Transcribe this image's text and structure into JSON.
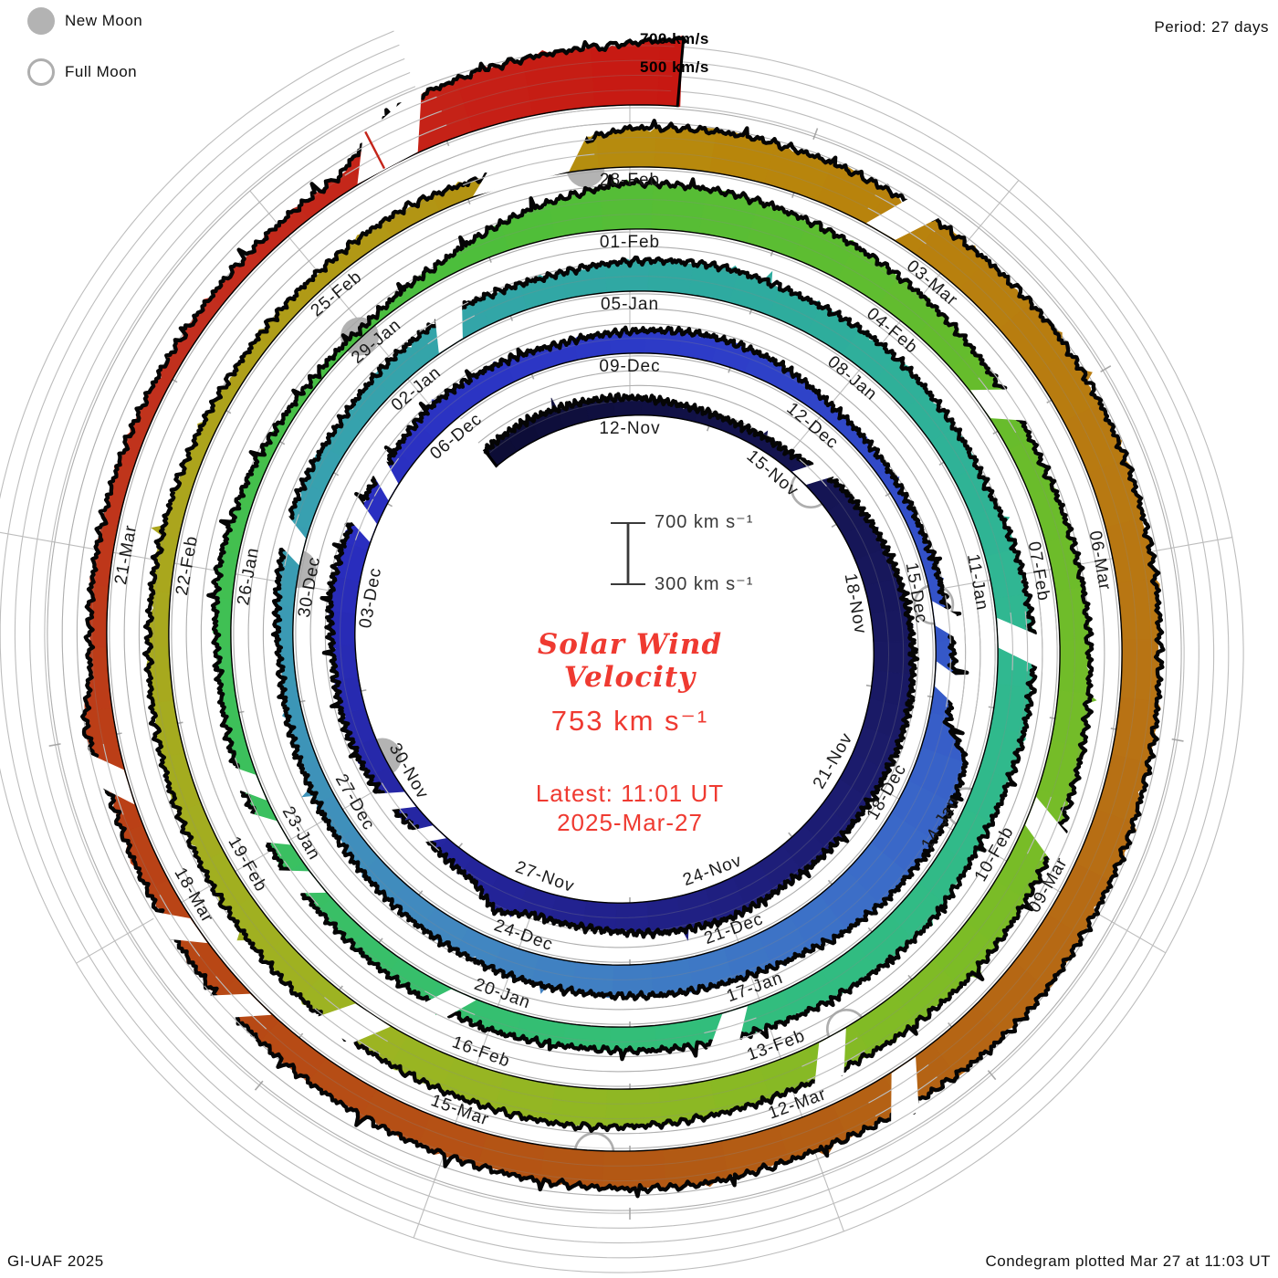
{
  "header": {
    "period_label": "Period: 27 days"
  },
  "legend": {
    "new_moon_label": "New Moon",
    "full_moon_label": "Full Moon"
  },
  "footer": {
    "left": "GI-UAF 2025",
    "right": "Condegram plotted Mar 27 at 11:03 UT"
  },
  "center": {
    "title_line1": "Solar Wind",
    "title_line2": "Velocity",
    "current_value": "753 km s⁻¹",
    "latest_line": "Latest: 11:01 UT",
    "date_line": "2025-Mar-27",
    "scalebar_top": "700 km s⁻¹",
    "scalebar_bottom": "300 km s⁻¹"
  },
  "outer_scale": {
    "top": "700 km/s",
    "bottom": "500 km/s"
  },
  "chart_data": {
    "type": "spiral_polar_time_series_condegram",
    "title": "Solar Wind Velocity",
    "period_days": 27,
    "days_per_tick_label": 3,
    "start_label": "12-Nov",
    "end_datetime": "2025-Mar-27 11:01 UT",
    "latest_velocity_kms": 753,
    "radial_scale": {
      "baseline_kms": 300,
      "gridlines_kms": [
        400,
        500,
        600,
        700
      ]
    },
    "date_labels": [
      {
        "t": 0,
        "text": "12-Nov"
      },
      {
        "t": 3,
        "text": "15-Nov"
      },
      {
        "t": 6,
        "text": "18-Nov"
      },
      {
        "t": 9,
        "text": "21-Nov"
      },
      {
        "t": 12,
        "text": "24-Nov"
      },
      {
        "t": 15,
        "text": "27-Nov"
      },
      {
        "t": 18,
        "text": "30-Nov"
      },
      {
        "t": 21,
        "text": "03-Dec"
      },
      {
        "t": 24,
        "text": "06-Dec"
      },
      {
        "t": 27,
        "text": "09-Dec"
      },
      {
        "t": 30,
        "text": "12-Dec"
      },
      {
        "t": 33,
        "text": "15-Dec"
      },
      {
        "t": 36,
        "text": "18-Dec"
      },
      {
        "t": 39,
        "text": "21-Dec"
      },
      {
        "t": 42,
        "text": "24-Dec"
      },
      {
        "t": 45,
        "text": "27-Dec"
      },
      {
        "t": 48,
        "text": "30-Dec"
      },
      {
        "t": 51,
        "text": "02-Jan"
      },
      {
        "t": 54,
        "text": "05-Jan"
      },
      {
        "t": 57,
        "text": "08-Jan"
      },
      {
        "t": 60,
        "text": "11-Jan"
      },
      {
        "t": 63,
        "text": "14-Jan"
      },
      {
        "t": 66,
        "text": "17-Jan"
      },
      {
        "t": 69,
        "text": "20-Jan"
      },
      {
        "t": 72,
        "text": "23-Jan"
      },
      {
        "t": 75,
        "text": "26-Jan"
      },
      {
        "t": 78,
        "text": "29-Jan"
      },
      {
        "t": 81,
        "text": "01-Feb"
      },
      {
        "t": 84,
        "text": "04-Feb"
      },
      {
        "t": 87,
        "text": "07-Feb"
      },
      {
        "t": 90,
        "text": "10-Feb"
      },
      {
        "t": 93,
        "text": "13-Feb"
      },
      {
        "t": 96,
        "text": "16-Feb"
      },
      {
        "t": 99,
        "text": "19-Feb"
      },
      {
        "t": 102,
        "text": "22-Feb"
      },
      {
        "t": 105,
        "text": "25-Feb"
      },
      {
        "t": 108,
        "text": "28-Feb"
      },
      {
        "t": 111,
        "text": "03-Mar"
      },
      {
        "t": 114,
        "text": "06-Mar"
      },
      {
        "t": 117,
        "text": "09-Mar"
      },
      {
        "t": 120,
        "text": "12-Mar"
      },
      {
        "t": 123,
        "text": "15-Mar"
      },
      {
        "t": 126,
        "text": "18-Mar"
      },
      {
        "t": 129,
        "text": "21-Mar"
      }
    ],
    "velocity_series_t_v_kms": [
      [
        -2.8,
        430
      ],
      [
        -2,
        445
      ],
      [
        -1,
        435
      ],
      [
        0,
        420
      ],
      [
        1,
        390
      ],
      [
        2,
        378
      ],
      [
        3,
        392
      ],
      [
        4,
        470
      ],
      [
        5,
        515
      ],
      [
        6,
        545
      ],
      [
        7,
        565
      ],
      [
        8,
        572
      ],
      [
        9,
        558
      ],
      [
        10,
        540
      ],
      [
        11,
        525
      ],
      [
        12,
        545
      ],
      [
        13,
        520
      ],
      [
        14,
        482
      ],
      [
        15,
        470
      ],
      [
        15.5,
        540
      ],
      [
        16,
        430
      ],
      [
        17,
        400
      ],
      [
        18,
        450
      ],
      [
        19,
        468
      ],
      [
        20,
        452
      ],
      [
        21,
        482
      ],
      [
        22,
        462
      ],
      [
        23,
        442
      ],
      [
        24,
        478
      ],
      [
        25,
        460
      ],
      [
        26,
        432
      ],
      [
        27,
        448
      ],
      [
        28,
        470
      ],
      [
        29,
        452
      ],
      [
        30,
        398
      ],
      [
        31,
        382
      ],
      [
        32,
        372
      ],
      [
        33,
        385
      ],
      [
        34,
        420
      ],
      [
        34.8,
        430
      ],
      [
        35.2,
        615
      ],
      [
        36,
        648
      ],
      [
        37,
        632
      ],
      [
        37.8,
        598
      ],
      [
        38.3,
        560
      ],
      [
        39,
        535
      ],
      [
        40,
        520
      ],
      [
        41,
        502
      ],
      [
        42,
        492
      ],
      [
        43,
        472
      ],
      [
        44,
        452
      ],
      [
        45,
        432
      ],
      [
        46,
        412
      ],
      [
        47,
        395
      ],
      [
        48,
        425
      ],
      [
        49,
        452
      ],
      [
        50,
        442
      ],
      [
        51,
        472
      ],
      [
        52,
        492
      ],
      [
        53,
        472
      ],
      [
        54,
        502
      ],
      [
        55,
        522
      ],
      [
        56,
        502
      ],
      [
        57,
        512
      ],
      [
        58,
        492
      ],
      [
        59,
        475
      ],
      [
        60,
        522
      ],
      [
        61,
        542
      ],
      [
        62,
        522
      ],
      [
        63,
        502
      ],
      [
        64,
        532
      ],
      [
        65,
        512
      ],
      [
        66,
        490
      ],
      [
        67,
        470
      ],
      [
        68,
        452
      ],
      [
        69,
        462
      ],
      [
        70,
        442
      ],
      [
        71,
        422
      ],
      [
        72,
        432
      ],
      [
        73,
        412
      ],
      [
        74,
        392
      ],
      [
        75,
        420
      ],
      [
        76,
        390
      ],
      [
        77,
        352
      ],
      [
        78,
        342
      ],
      [
        79,
        400
      ],
      [
        80,
        520
      ],
      [
        81,
        612
      ],
      [
        82,
        600
      ],
      [
        83,
        562
      ],
      [
        84,
        522
      ],
      [
        85,
        482
      ],
      [
        86,
        462
      ],
      [
        87,
        482
      ],
      [
        88,
        502
      ],
      [
        89,
        522
      ],
      [
        90,
        542
      ],
      [
        91,
        562
      ],
      [
        92,
        542
      ],
      [
        93,
        522
      ],
      [
        94,
        542
      ],
      [
        95,
        562
      ],
      [
        96,
        542
      ],
      [
        97,
        522
      ],
      [
        98,
        502
      ],
      [
        99,
        482
      ],
      [
        100,
        462
      ],
      [
        101,
        442
      ],
      [
        102,
        422
      ],
      [
        103,
        402
      ],
      [
        104,
        392
      ],
      [
        105,
        402
      ],
      [
        106,
        425
      ],
      [
        107,
        385
      ],
      [
        107.6,
        500
      ],
      [
        108,
        562
      ],
      [
        109,
        582
      ],
      [
        110,
        572
      ],
      [
        111,
        562
      ],
      [
        112,
        582
      ],
      [
        113,
        572
      ],
      [
        114,
        562
      ],
      [
        115,
        552
      ],
      [
        116,
        562
      ],
      [
        117,
        572
      ],
      [
        118,
        592
      ],
      [
        119,
        562
      ],
      [
        120,
        542
      ],
      [
        121,
        562
      ],
      [
        122,
        542
      ],
      [
        123,
        522
      ],
      [
        124,
        502
      ],
      [
        125,
        482
      ],
      [
        126,
        462
      ],
      [
        127,
        442
      ],
      [
        127.6,
        500
      ],
      [
        128,
        422
      ],
      [
        129,
        412
      ],
      [
        130,
        402
      ],
      [
        131,
        392
      ],
      [
        132,
        402
      ],
      [
        132.6,
        415
      ],
      [
        133.3,
        640
      ],
      [
        133.8,
        672
      ],
      [
        134.3,
        690
      ],
      [
        134.8,
        700
      ],
      [
        135.4,
        753
      ]
    ],
    "data_gaps_t": [
      [
        3.25,
        3.6
      ],
      [
        16.75,
        17.05
      ],
      [
        17.45,
        17.75
      ],
      [
        21.85,
        22.15
      ],
      [
        22.55,
        22.85
      ],
      [
        33.15,
        33.5
      ],
      [
        34.0,
        34.35
      ],
      [
        48.25,
        48.6
      ],
      [
        51.5,
        51.85
      ],
      [
        60.45,
        60.8
      ],
      [
        66.15,
        66.45
      ],
      [
        69.25,
        69.55
      ],
      [
        71.3,
        71.6
      ],
      [
        71.95,
        72.25
      ],
      [
        72.5,
        72.8
      ],
      [
        85.0,
        85.35
      ],
      [
        89.3,
        89.6
      ],
      [
        92.3,
        92.6
      ],
      [
        96.9,
        97.3
      ],
      [
        106.55,
        107.45
      ],
      [
        110.2,
        110.5
      ],
      [
        118.9,
        119.15
      ],
      [
        124.8,
        125.05
      ],
      [
        125.6,
        125.85
      ],
      [
        126.9,
        127.2
      ],
      [
        132.7,
        133.25
      ]
    ],
    "isolated_spikes_t_v": [
      [
        132.95,
        585
      ]
    ],
    "moon_events": [
      {
        "t": 3.7,
        "type": "full"
      },
      {
        "t": 18.4,
        "type": "new"
      },
      {
        "t": 33.2,
        "type": "full"
      },
      {
        "t": 48.2,
        "type": "new"
      },
      {
        "t": 62.7,
        "type": "full"
      },
      {
        "t": 77.9,
        "type": "new"
      },
      {
        "t": 92.3,
        "type": "full"
      },
      {
        "t": 107.6,
        "type": "new"
      },
      {
        "t": 121.8,
        "type": "full"
      }
    ],
    "colormap_stops_t_hex": [
      [
        -3,
        "#0C0C34"
      ],
      [
        8,
        "#1A1A66"
      ],
      [
        16,
        "#24249A"
      ],
      [
        22,
        "#2A2EC0"
      ],
      [
        28,
        "#2D3CC8"
      ],
      [
        34,
        "#3558C8"
      ],
      [
        37,
        "#3B6CC8"
      ],
      [
        43,
        "#4288C0"
      ],
      [
        49,
        "#38A0B0"
      ],
      [
        55,
        "#2EAAA0"
      ],
      [
        61,
        "#30B890"
      ],
      [
        67,
        "#32BE7A"
      ],
      [
        73,
        "#3CC05C"
      ],
      [
        79,
        "#4CBE3C"
      ],
      [
        85,
        "#66BC2C"
      ],
      [
        91,
        "#7CBC26"
      ],
      [
        97,
        "#9CB422"
      ],
      [
        103,
        "#ACA41C"
      ],
      [
        109,
        "#B8860B"
      ],
      [
        115,
        "#B87414"
      ],
      [
        121,
        "#B25A14"
      ],
      [
        127,
        "#BA4016"
      ],
      [
        131,
        "#C22E1E"
      ],
      [
        136,
        "#C81510"
      ]
    ],
    "moon_colors": {
      "new_fill": "#b3b3b3",
      "full_stroke": "#aeaeae"
    },
    "accent_text_color": "#ef3a31"
  }
}
